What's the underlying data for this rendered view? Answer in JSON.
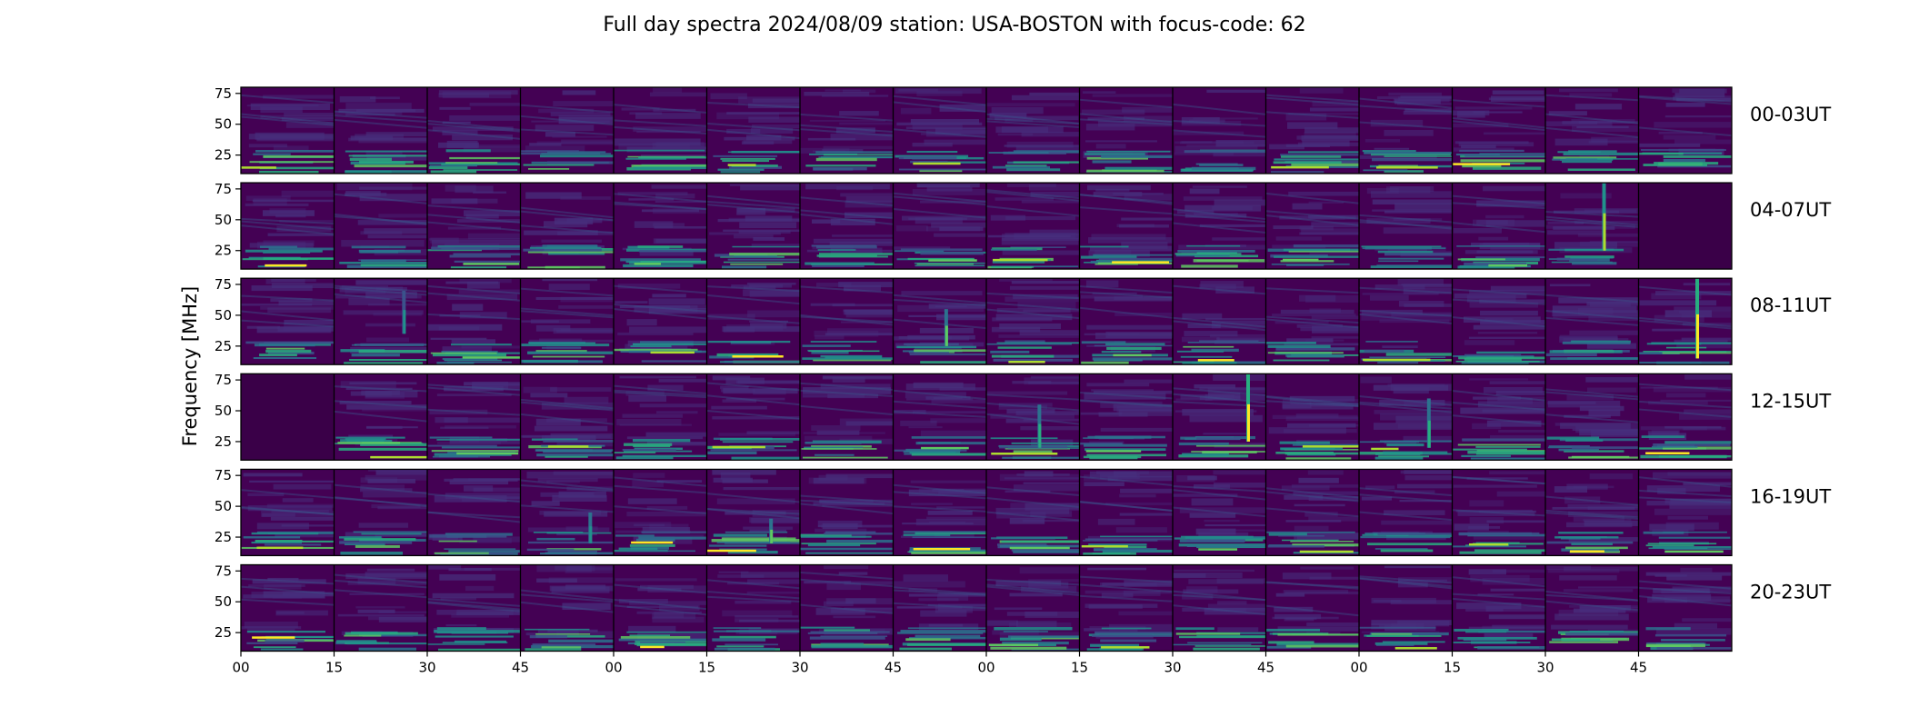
{
  "chart_data": {
    "type": "heatmap",
    "title": "Full day spectra 2024/08/09 station: USA-BOSTON with focus-code: 62",
    "ylabel": "Frequency [MHz]",
    "y_ticks": [
      "75",
      "50",
      "25"
    ],
    "ylim": [
      10,
      80
    ],
    "x_ticks": [
      "00",
      "15",
      "30",
      "45",
      "00",
      "15",
      "30",
      "45",
      "00",
      "15",
      "30",
      "45",
      "00",
      "15",
      "30",
      "45"
    ],
    "colormap": [
      "#440154",
      "#472f7d",
      "#3b528b",
      "#2c728e",
      "#21918c",
      "#28ae80",
      "#5ec962",
      "#addc30",
      "#fde725"
    ],
    "rows": [
      {
        "label": "00-03UT"
      },
      {
        "label": "04-07UT"
      },
      {
        "label": "08-11UT"
      },
      {
        "label": "12-15UT"
      },
      {
        "label": "16-19UT"
      },
      {
        "label": "20-23UT"
      }
    ],
    "columns_per_row": 16,
    "minutes_per_panel": 15,
    "notable_bursts": [
      {
        "row": 1,
        "panel": 14,
        "freq_range": [
          25,
          80
        ],
        "intensity": 0.9
      },
      {
        "row": 1,
        "panel": 15,
        "freq_range": [
          10,
          80
        ],
        "intensity": 0.05
      },
      {
        "row": 2,
        "panel": 1,
        "freq_range": [
          35,
          70
        ],
        "intensity": 0.45
      },
      {
        "row": 2,
        "panel": 7,
        "freq_range": [
          25,
          55
        ],
        "intensity": 0.7
      },
      {
        "row": 2,
        "panel": 15,
        "freq_range": [
          15,
          80
        ],
        "intensity": 0.95
      },
      {
        "row": 3,
        "panel": 0,
        "freq_range": [
          10,
          80
        ],
        "intensity": 0.05
      },
      {
        "row": 3,
        "panel": 8,
        "freq_range": [
          20,
          55
        ],
        "intensity": 0.65
      },
      {
        "row": 3,
        "panel": 10,
        "freq_range": [
          25,
          80
        ],
        "intensity": 1.0
      },
      {
        "row": 3,
        "panel": 12,
        "freq_range": [
          20,
          60
        ],
        "intensity": 0.6
      },
      {
        "row": 4,
        "panel": 5,
        "freq_range": [
          20,
          40
        ],
        "intensity": 0.7
      },
      {
        "row": 4,
        "panel": 3,
        "freq_range": [
          20,
          45
        ],
        "intensity": 0.55
      }
    ]
  }
}
